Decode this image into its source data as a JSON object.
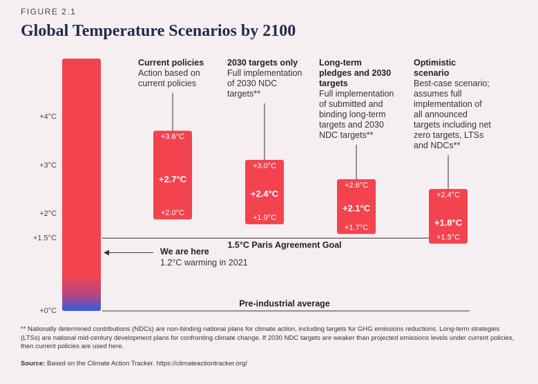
{
  "chart_data": {
    "type": "range",
    "figure_label": "FIGURE 2.1",
    "title": "Global Temperature Scenarios by 2100",
    "ylim": [
      0,
      5.2
    ],
    "yticks": [
      {
        "value": 0,
        "label": "+0°C"
      },
      {
        "value": 1.5,
        "label": "+1.5°C"
      },
      {
        "value": 2,
        "label": "+2°C"
      },
      {
        "value": 3,
        "label": "+3°C"
      },
      {
        "value": 4,
        "label": "+4°C"
      }
    ],
    "color": "#f2434f",
    "categories": [
      "Current policies",
      "2030 targets only",
      "Long-term pledges and 2030 targets",
      "Optimistic scenario"
    ],
    "descriptions": [
      "Action based on current policies",
      "Full implementation of 2030 NDC targets**",
      "Full implementation of submitted and binding long-term targets and 2030 NDC targets**",
      "Best-case scenario; assumes full implementation of all announced targets including net zero targets, LTSs and NDCs**"
    ],
    "high": {
      "values": [
        3.6,
        3.0,
        2.6,
        2.4
      ],
      "value_labels": [
        "+3.6°C",
        "+3.0°C",
        "+2.6°C",
        "+2.4°C"
      ]
    },
    "median": {
      "values": [
        2.7,
        2.4,
        2.1,
        1.8
      ],
      "value_labels": [
        "+2.7°C",
        "+2.4°C",
        "+2.1°C",
        "+1.8°C"
      ]
    },
    "low": {
      "values": [
        2.0,
        1.9,
        1.7,
        1.5
      ],
      "value_labels": [
        "+2.0°C",
        "+1.9°C",
        "+1.7°C",
        "+1.5°C"
      ]
    },
    "annotations": {
      "goal": {
        "text": "1.5°C Paris Agreement Goal",
        "value": 1.5
      },
      "now": {
        "label": "We are here",
        "text": "1.2°C warming in 2021",
        "value": 1.2
      },
      "baseline": {
        "text": "Pre-industrial average",
        "value": 0
      }
    },
    "footnote": "** Nationally determined contributions (NDCs) are non-binding national plans for climate action, including targets for GHG emissions reductions. Long-term strategies (LTSs) are national mid-century development plans for confronting climate change. If 2030 NDC targets are weaker than projected emissions levels under current policies, then current policies are used here.",
    "source_label": "Source:",
    "source_text": "Based on the Climate Action Tracker. https://climateactiontracker.org/"
  }
}
